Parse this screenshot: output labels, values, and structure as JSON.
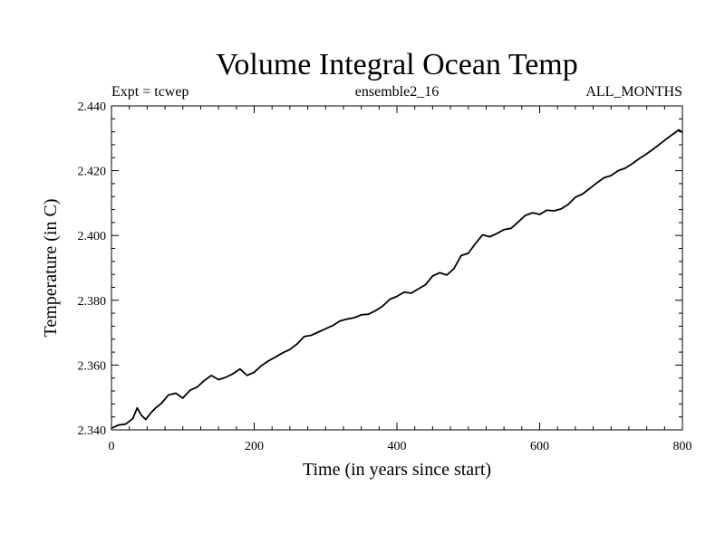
{
  "chart_data": {
    "type": "line",
    "title": "Volume Integral Ocean Temp",
    "subtitle_left": "Expt = tcwep",
    "subtitle_center": "ensemble2_16",
    "subtitle_right": "ALL_MONTHS",
    "xlabel": "Time (in years since start)",
    "ylabel": "Temperature (in C)",
    "xlim": [
      0,
      800
    ],
    "ylim": [
      2.34,
      2.44
    ],
    "xticks": [
      0,
      200,
      400,
      600,
      800
    ],
    "xtick_labels": [
      "0",
      "200",
      "400",
      "600",
      "800"
    ],
    "yticks": [
      2.34,
      2.36,
      2.38,
      2.4,
      2.42,
      2.44
    ],
    "ytick_labels": [
      "2.340",
      "2.360",
      "2.380",
      "2.400",
      "2.420",
      "2.440"
    ],
    "grid": false,
    "series": [
      {
        "name": "Volume Integral Ocean Temp",
        "color": "#000000",
        "x": [
          0,
          10,
          20,
          30,
          36,
          42,
          48,
          55,
          62,
          70,
          80,
          90,
          100,
          110,
          120,
          130,
          140,
          150,
          160,
          170,
          180,
          190,
          200,
          210,
          220,
          230,
          240,
          250,
          260,
          270,
          280,
          290,
          300,
          310,
          320,
          330,
          340,
          350,
          360,
          370,
          380,
          390,
          400,
          410,
          420,
          430,
          440,
          450,
          460,
          470,
          480,
          490,
          500,
          510,
          520,
          530,
          540,
          550,
          560,
          570,
          580,
          590,
          600,
          610,
          620,
          630,
          640,
          650,
          660,
          670,
          680,
          690,
          700,
          710,
          720,
          730,
          740,
          750,
          760,
          770,
          780,
          790,
          795,
          800
        ],
        "values": [
          2.3405,
          2.3415,
          2.3418,
          2.3435,
          2.3468,
          2.3445,
          2.3432,
          2.3452,
          2.3468,
          2.3482,
          2.3508,
          2.3513,
          2.3498,
          2.3522,
          2.3532,
          2.3552,
          2.3568,
          2.3555,
          2.3562,
          2.3573,
          2.3588,
          2.3568,
          2.3578,
          2.3598,
          2.3613,
          2.3625,
          2.3638,
          2.3648,
          2.3665,
          2.3688,
          2.3692,
          2.3702,
          2.3712,
          2.3722,
          2.3736,
          2.3742,
          2.3746,
          2.3755,
          2.3757,
          2.3768,
          2.3782,
          2.3803,
          2.3812,
          2.3825,
          2.3822,
          2.3835,
          2.3848,
          2.3875,
          2.3885,
          2.3878,
          2.3898,
          2.3938,
          2.3945,
          2.3975,
          2.4002,
          2.3996,
          2.4006,
          2.4018,
          2.4022,
          2.4042,
          2.4062,
          2.407,
          2.4065,
          2.4078,
          2.4076,
          2.4082,
          2.4096,
          2.4118,
          2.4128,
          2.4145,
          2.4162,
          2.4178,
          2.4185,
          2.42,
          2.4208,
          2.4222,
          2.4238,
          2.4252,
          2.4268,
          2.4285,
          2.4302,
          2.4318,
          2.4326,
          2.4318
        ]
      }
    ]
  }
}
